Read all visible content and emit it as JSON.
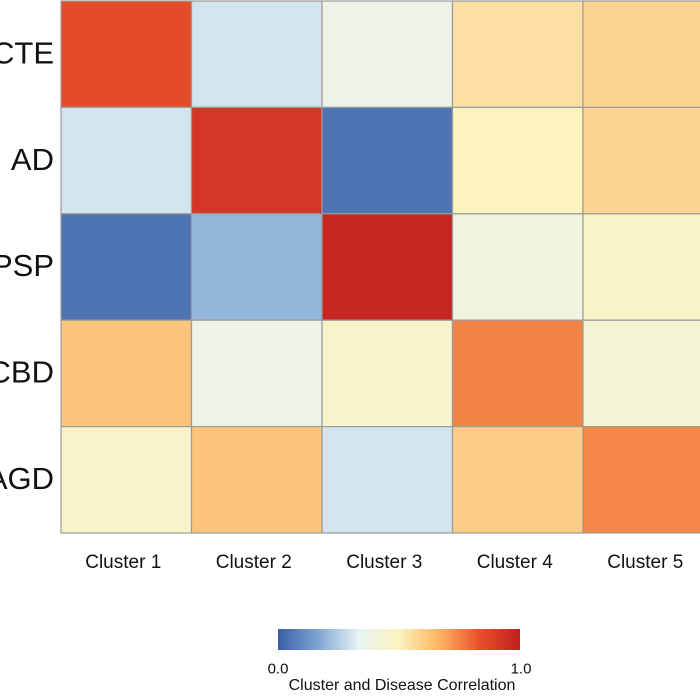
{
  "chart_data": {
    "type": "heatmap",
    "rows": [
      "CTE",
      "AD",
      "PSP",
      "CBD",
      "AGD"
    ],
    "columns": [
      "Cluster 1",
      "Cluster 2",
      "Cluster 3",
      "Cluster 4",
      "Cluster 5"
    ],
    "values": [
      [
        0.85,
        0.3,
        0.38,
        0.55,
        0.58
      ],
      [
        0.3,
        0.92,
        0.05,
        0.5,
        0.58
      ],
      [
        0.05,
        0.2,
        0.98,
        0.4,
        0.47
      ],
      [
        0.62,
        0.38,
        0.46,
        0.75,
        0.43
      ],
      [
        0.46,
        0.62,
        0.3,
        0.6,
        0.74
      ]
    ],
    "colorbar": {
      "min": 0.0,
      "max": 1.0,
      "min_label": "0.0",
      "max_label": "1.0",
      "title": "Cluster and Disease Correlation"
    },
    "colors": [
      "#3a5ea6",
      "#7ea6d2",
      "#e8f4f4",
      "#fbf2bd",
      "#fdb461",
      "#e8502a",
      "#c21f1e"
    ]
  }
}
